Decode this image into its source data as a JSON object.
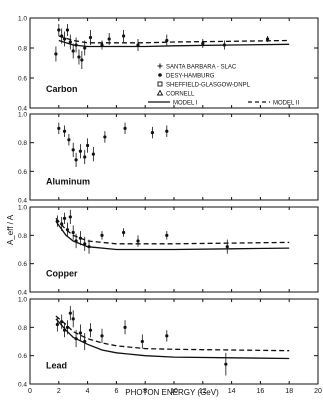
{
  "chart_data": {
    "type": "scatter",
    "xlabel": "PHOTON ENERGY (GeV)",
    "ylabel": "A_eff / A",
    "xlim": [
      0,
      20
    ],
    "x_ticks": [
      "0",
      "2",
      "4",
      "6",
      "8",
      "10",
      "12",
      "14",
      "16",
      "18",
      "20"
    ],
    "ylim_per_panel": [
      0.4,
      1.0
    ],
    "y_ticks": [
      "1.0",
      "0.8",
      "0.6",
      "0.4"
    ],
    "reference_line": 1.0,
    "legend": {
      "placement": "top-right (Carbon panel)",
      "entries": [
        {
          "marker": "plus",
          "label": "SANTA BARBARA - SLAC"
        },
        {
          "marker": "filled-circle",
          "label": "DESY-HAMBURG"
        },
        {
          "marker": "open-square",
          "label": "SHEFFIELD-GLASGOW-DNPL"
        },
        {
          "marker": "open-triangle",
          "label": "CORNELL"
        },
        {
          "marker": "solid-line",
          "label": "MODEL I"
        },
        {
          "marker": "dashed-line",
          "label": "MODEL II"
        }
      ]
    },
    "panels": [
      {
        "label": "Carbon",
        "model_I": {
          "x": [
            2,
            3,
            4,
            6,
            8,
            10,
            14,
            18
          ],
          "y": [
            0.85,
            0.82,
            0.81,
            0.81,
            0.81,
            0.815,
            0.82,
            0.825
          ]
        },
        "model_II": {
          "x": [
            2,
            3,
            4,
            6,
            8,
            10,
            14,
            18
          ],
          "y": [
            0.88,
            0.85,
            0.835,
            0.835,
            0.835,
            0.84,
            0.845,
            0.85
          ]
        },
        "points": [
          {
            "x": 1.8,
            "y": 0.76,
            "err": 0.05
          },
          {
            "x": 2.0,
            "y": 0.92,
            "err": 0.04
          },
          {
            "x": 2.2,
            "y": 0.88,
            "err": 0.05
          },
          {
            "x": 2.4,
            "y": 0.86,
            "err": 0.05
          },
          {
            "x": 2.6,
            "y": 0.92,
            "err": 0.04
          },
          {
            "x": 2.8,
            "y": 0.84,
            "err": 0.05
          },
          {
            "x": 3.0,
            "y": 0.78,
            "err": 0.05
          },
          {
            "x": 3.2,
            "y": 0.82,
            "err": 0.05
          },
          {
            "x": 3.4,
            "y": 0.74,
            "err": 0.05
          },
          {
            "x": 3.6,
            "y": 0.72,
            "err": 0.06
          },
          {
            "x": 3.8,
            "y": 0.8,
            "err": 0.05
          },
          {
            "x": 4.2,
            "y": 0.87,
            "err": 0.05
          },
          {
            "x": 5.0,
            "y": 0.82,
            "err": 0.03
          },
          {
            "x": 5.5,
            "y": 0.86,
            "err": 0.04
          },
          {
            "x": 6.5,
            "y": 0.88,
            "err": 0.04
          },
          {
            "x": 7.5,
            "y": 0.82,
            "err": 0.04
          },
          {
            "x": 9.5,
            "y": 0.85,
            "err": 0.04
          },
          {
            "x": 12.0,
            "y": 0.83,
            "err": 0.03
          },
          {
            "x": 13.5,
            "y": 0.82,
            "err": 0.03
          },
          {
            "x": 16.5,
            "y": 0.86,
            "err": 0.02
          }
        ]
      },
      {
        "label": "Aluminum",
        "points": [
          {
            "x": 2.0,
            "y": 0.9,
            "err": 0.04
          },
          {
            "x": 2.4,
            "y": 0.88,
            "err": 0.04
          },
          {
            "x": 2.7,
            "y": 0.82,
            "err": 0.04
          },
          {
            "x": 3.0,
            "y": 0.75,
            "err": 0.05
          },
          {
            "x": 3.2,
            "y": 0.68,
            "err": 0.05
          },
          {
            "x": 3.5,
            "y": 0.74,
            "err": 0.05
          },
          {
            "x": 3.8,
            "y": 0.7,
            "err": 0.05
          },
          {
            "x": 4.0,
            "y": 0.78,
            "err": 0.05
          },
          {
            "x": 4.4,
            "y": 0.72,
            "err": 0.05
          },
          {
            "x": 5.2,
            "y": 0.84,
            "err": 0.04
          },
          {
            "x": 6.6,
            "y": 0.9,
            "err": 0.04
          },
          {
            "x": 8.5,
            "y": 0.87,
            "err": 0.04
          },
          {
            "x": 9.5,
            "y": 0.88,
            "err": 0.04
          }
        ]
      },
      {
        "label": "Copper",
        "model_I": {
          "x": [
            1.8,
            2.5,
            3,
            4,
            6,
            8,
            10,
            14,
            18
          ],
          "y": [
            0.9,
            0.8,
            0.76,
            0.72,
            0.7,
            0.7,
            0.7,
            0.705,
            0.71
          ]
        },
        "model_II": {
          "x": [
            1.8,
            2.5,
            3,
            4,
            6,
            8,
            10,
            14,
            18
          ],
          "y": [
            0.92,
            0.84,
            0.8,
            0.76,
            0.74,
            0.74,
            0.74,
            0.745,
            0.75
          ]
        },
        "points": [
          {
            "x": 1.9,
            "y": 0.9,
            "err": 0.04
          },
          {
            "x": 2.2,
            "y": 0.88,
            "err": 0.05
          },
          {
            "x": 2.4,
            "y": 0.92,
            "err": 0.04
          },
          {
            "x": 2.6,
            "y": 0.84,
            "err": 0.05
          },
          {
            "x": 2.8,
            "y": 0.93,
            "err": 0.05
          },
          {
            "x": 3.0,
            "y": 0.82,
            "err": 0.05
          },
          {
            "x": 3.2,
            "y": 0.76,
            "err": 0.05
          },
          {
            "x": 3.5,
            "y": 0.78,
            "err": 0.05
          },
          {
            "x": 3.8,
            "y": 0.74,
            "err": 0.05
          },
          {
            "x": 4.1,
            "y": 0.72,
            "err": 0.05
          },
          {
            "x": 5.0,
            "y": 0.8,
            "err": 0.03
          },
          {
            "x": 6.5,
            "y": 0.82,
            "err": 0.03
          },
          {
            "x": 7.5,
            "y": 0.76,
            "err": 0.04
          },
          {
            "x": 9.5,
            "y": 0.8,
            "err": 0.03
          },
          {
            "x": 13.7,
            "y": 0.72,
            "err": 0.05
          }
        ]
      },
      {
        "label": "Lead",
        "model_I": {
          "x": [
            1.8,
            2.5,
            3,
            4,
            5,
            6,
            8,
            10,
            14,
            18
          ],
          "y": [
            0.86,
            0.78,
            0.73,
            0.68,
            0.64,
            0.62,
            0.6,
            0.59,
            0.585,
            0.58
          ]
        },
        "model_II": {
          "x": [
            1.8,
            2.5,
            3,
            4,
            5,
            6,
            8,
            10,
            14,
            18
          ],
          "y": [
            0.88,
            0.82,
            0.77,
            0.72,
            0.69,
            0.67,
            0.65,
            0.645,
            0.64,
            0.635
          ]
        },
        "points": [
          {
            "x": 1.9,
            "y": 0.82,
            "err": 0.05
          },
          {
            "x": 2.2,
            "y": 0.84,
            "err": 0.05
          },
          {
            "x": 2.4,
            "y": 0.78,
            "err": 0.05
          },
          {
            "x": 2.6,
            "y": 0.8,
            "err": 0.05
          },
          {
            "x": 2.8,
            "y": 0.9,
            "err": 0.05
          },
          {
            "x": 3.0,
            "y": 0.86,
            "err": 0.06
          },
          {
            "x": 3.2,
            "y": 0.72,
            "err": 0.06
          },
          {
            "x": 3.5,
            "y": 0.76,
            "err": 0.06
          },
          {
            "x": 3.8,
            "y": 0.7,
            "err": 0.06
          },
          {
            "x": 4.2,
            "y": 0.78,
            "err": 0.05
          },
          {
            "x": 5.0,
            "y": 0.74,
            "err": 0.05
          },
          {
            "x": 6.6,
            "y": 0.8,
            "err": 0.05
          },
          {
            "x": 7.8,
            "y": 0.7,
            "err": 0.05
          },
          {
            "x": 9.5,
            "y": 0.74,
            "err": 0.04
          },
          {
            "x": 13.6,
            "y": 0.54,
            "err": 0.08
          }
        ]
      }
    ]
  }
}
